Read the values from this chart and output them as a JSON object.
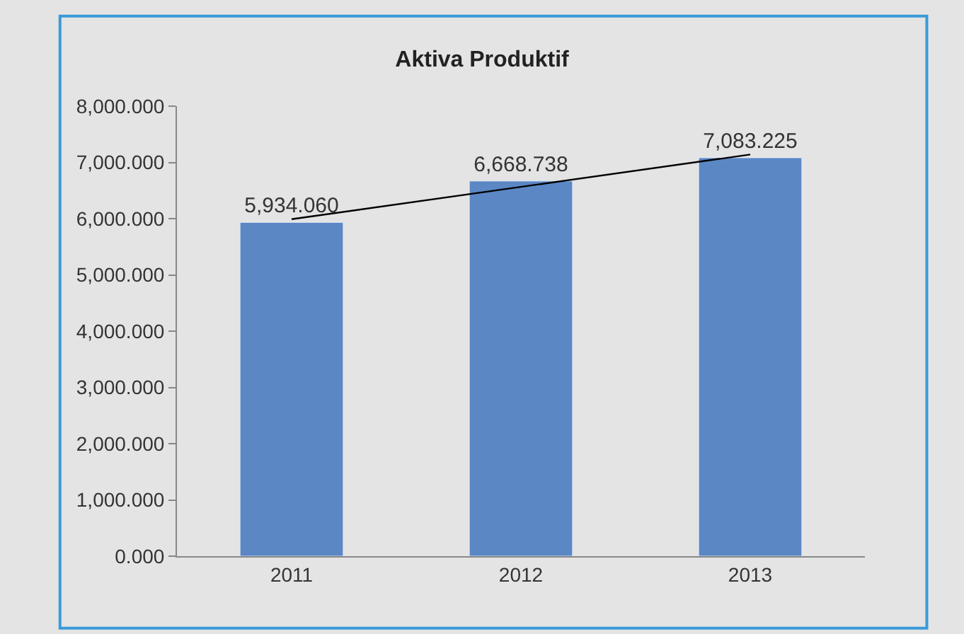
{
  "chart_data": {
    "type": "bar",
    "title": "Aktiva Produktif",
    "categories": [
      "2011",
      "2012",
      "2013"
    ],
    "series": [
      {
        "color": "#5b87c5",
        "values": [
          5934.06,
          6668.738,
          7083.225
        ],
        "value_labels": [
          "5,934.060",
          "6,668.738",
          "7,083.225"
        ]
      },
      {
        "type": "line",
        "color": "#000000",
        "values": [
          5990,
          null,
          7140
        ],
        "marker": "none",
        "line_style": "solid"
      }
    ],
    "ylim": [
      0,
      8000
    ],
    "yticks": [
      {
        "value": 0,
        "label": "0.000"
      },
      {
        "value": 1000,
        "label": "1,000.000"
      },
      {
        "value": 2000,
        "label": "2,000.000"
      },
      {
        "value": 3000,
        "label": "3,000.000"
      },
      {
        "value": 4000,
        "label": "4,000.000"
      },
      {
        "value": 5000,
        "label": "5,000.000"
      },
      {
        "value": 6000,
        "label": "6,000.000"
      },
      {
        "value": 7000,
        "label": "7,000.000"
      },
      {
        "value": 8000,
        "label": "8,000.000"
      }
    ],
    "grid": false
  }
}
